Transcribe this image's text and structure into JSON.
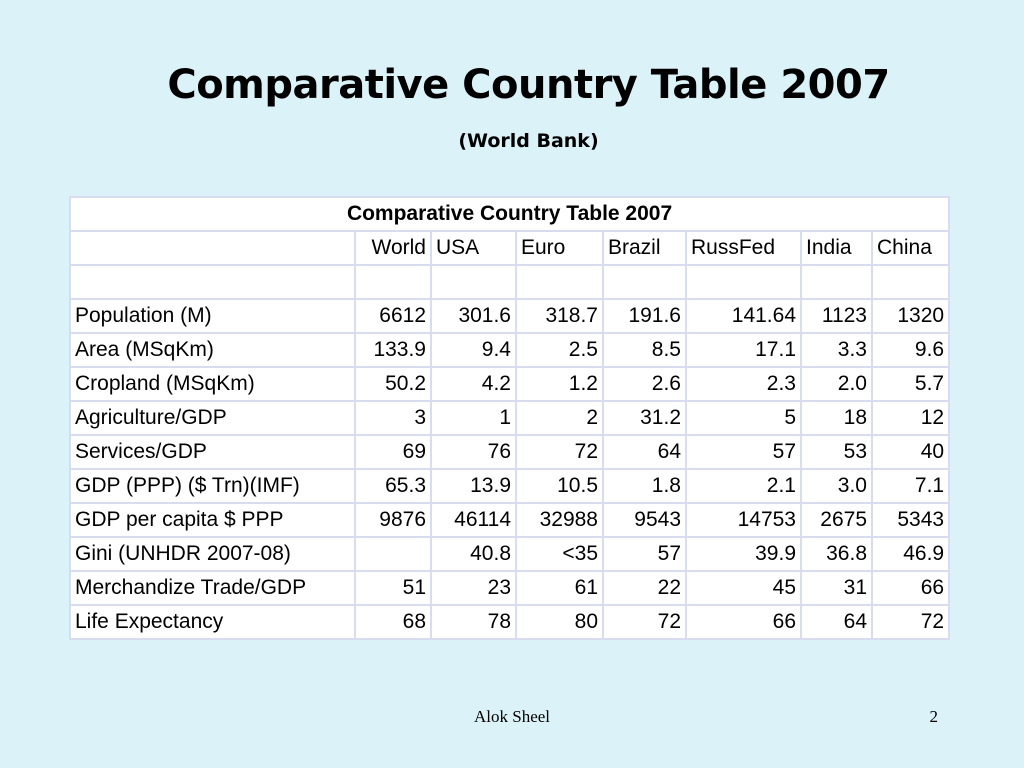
{
  "slide": {
    "title": "Comparative Country Table 2007",
    "subtitle": "(World Bank)"
  },
  "table": {
    "caption": "Comparative Country Table 2007",
    "columns": [
      "",
      "World",
      "USA",
      "Euro",
      "Brazil",
      "RussFed",
      "India",
      "China"
    ],
    "rows": [
      [
        "Population (M)",
        "6612",
        "301.6",
        "318.7",
        "191.6",
        "141.64",
        "1123",
        "1320"
      ],
      [
        "Area (MSqKm)",
        "133.9",
        "9.4",
        "2.5",
        "8.5",
        "17.1",
        "3.3",
        "9.6"
      ],
      [
        "Cropland (MSqKm)",
        "50.2",
        "4.2",
        "1.2",
        "2.6",
        "2.3",
        "2.0",
        "5.7"
      ],
      [
        "Agriculture/GDP",
        "3",
        "1",
        "2",
        "31.2",
        "5",
        "18",
        "12"
      ],
      [
        "Services/GDP",
        "69",
        "76",
        "72",
        "64",
        "57",
        "53",
        "40"
      ],
      [
        "GDP (PPP) ($ Trn)(IMF)",
        "65.3",
        "13.9",
        "10.5",
        "1.8",
        "2.1",
        "3.0",
        "7.1"
      ],
      [
        "GDP per capita $ PPP",
        "9876",
        "46114",
        "32988",
        "9543",
        "14753",
        "2675",
        "5343"
      ],
      [
        "Gini (UNHDR 2007-08)",
        "",
        "40.8",
        "<35",
        "57",
        "39.9",
        "36.8",
        "46.9"
      ],
      [
        "Merchandize Trade/GDP",
        "51",
        "23",
        "61",
        "22",
        "45",
        "31",
        "66"
      ],
      [
        "Life Expectancy",
        "68",
        "78",
        "80",
        "72",
        "66",
        "64",
        "72"
      ]
    ]
  },
  "footer": {
    "author": "Alok Sheel",
    "page_number": "2"
  }
}
